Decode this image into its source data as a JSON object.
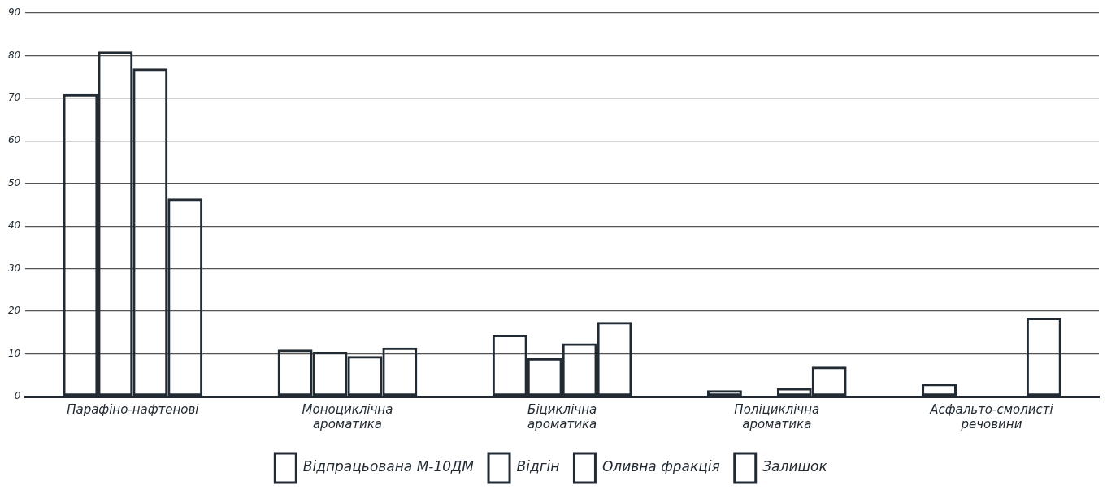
{
  "chart_data": {
    "type": "bar",
    "categories": [
      "Парафіно-нафтенові",
      "Моноциклічна\nароматика",
      "Біциклічна\nароматика",
      "Поліциклічна\nароматика",
      "Асфальто-смолисті\nречовини"
    ],
    "series": [
      {
        "name": "Відпрацьована М-10ДМ",
        "color": "#222b33",
        "values": [
          71,
          11,
          14.5,
          1.5,
          3
        ]
      },
      {
        "name": "Відгін",
        "color": "#222b33",
        "values": [
          81,
          10.5,
          9,
          null,
          null
        ]
      },
      {
        "name": "Оливна фракція",
        "color": "#222b33",
        "values": [
          77,
          9.5,
          12.5,
          2,
          null
        ]
      },
      {
        "name": "Залишок",
        "color": "#222b33",
        "values": [
          46.5,
          11.5,
          17.5,
          7,
          18.5
        ]
      }
    ],
    "ylim": [
      0,
      90
    ],
    "yticks": [
      0,
      10,
      20,
      30,
      40,
      50,
      60,
      70,
      80,
      90
    ],
    "grid": "y",
    "legend": "bottom"
  }
}
